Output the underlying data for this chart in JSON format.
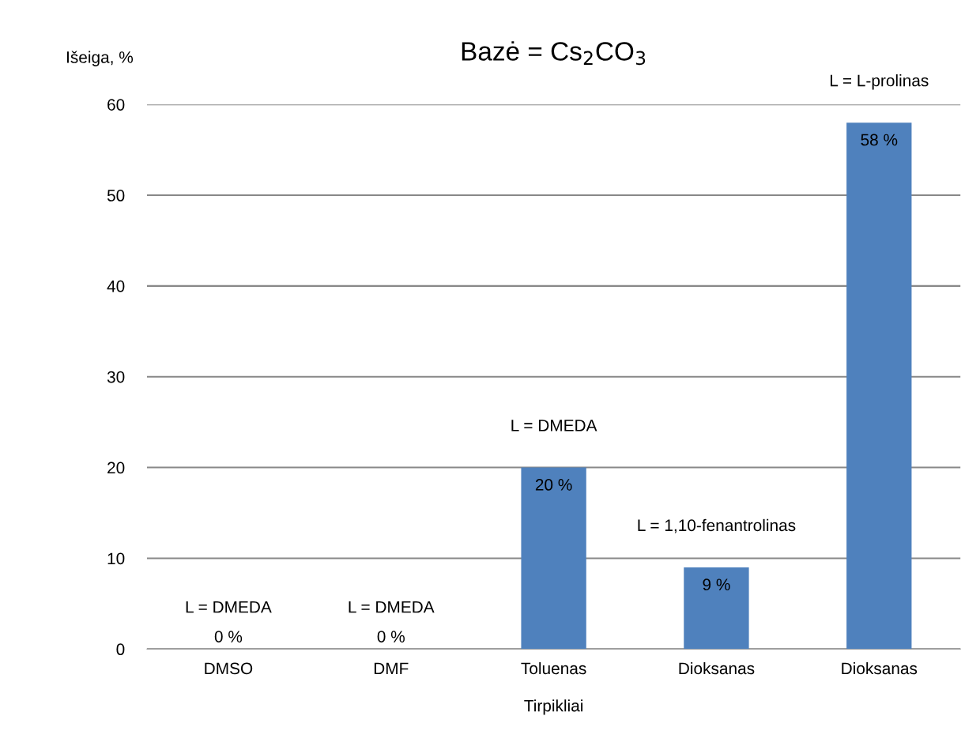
{
  "chart_data": {
    "type": "bar",
    "title": "Bazė = Cs$_{2}$CO$_{3}$",
    "xlabel": "Tirpikliai",
    "ylabel": "Išeiga, %",
    "categories": [
      "DMSO",
      "DMF",
      "Toluenas",
      "Dioksanas",
      "Dioksanas"
    ],
    "values": [
      0,
      0,
      20,
      9,
      58
    ],
    "value_labels": [
      "0 %",
      "0 %",
      "20 %",
      "9 %",
      "58 %"
    ],
    "color": "#4f81bd",
    "annotations": [
      "L = DMEDA",
      "L = DMEDA",
      "L = DMEDA",
      "L = 1,10-fenantrolinas",
      "L = L-prolinas"
    ],
    "ylim": [
      0,
      60
    ],
    "yticks": [
      0,
      10,
      20,
      30,
      40,
      50,
      60
    ],
    "grid": "y",
    "legend": false
  }
}
